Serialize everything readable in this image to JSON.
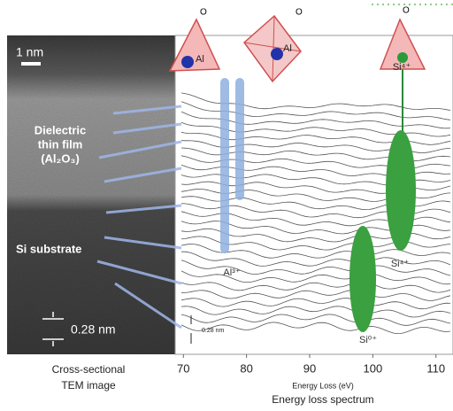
{
  "tem": {
    "scale_bar": "1 nm",
    "film_label": [
      "Dielectric",
      "thin film",
      "(Al₂O₃)"
    ],
    "substrate_label": "Si substrate",
    "spacing": "0.28 nm",
    "caption": [
      "Cross-sectional",
      "TEM image"
    ]
  },
  "structures": [
    {
      "top": "O",
      "center": "Al"
    },
    {
      "top": "O",
      "center": "Al"
    },
    {
      "top": "O",
      "center": "Si⁴⁺"
    }
  ],
  "spectrum": {
    "peaks": [
      "Al³⁺",
      "Si⁴⁺",
      "Si⁰⁺"
    ],
    "spacing": "0.28 nm",
    "xlabel": "Energy Loss (eV)",
    "caption": "Energy loss spectrum",
    "xlim": [
      68.7,
      112.7
    ],
    "xticks": [
      70,
      80,
      90,
      100,
      110
    ]
  }
}
